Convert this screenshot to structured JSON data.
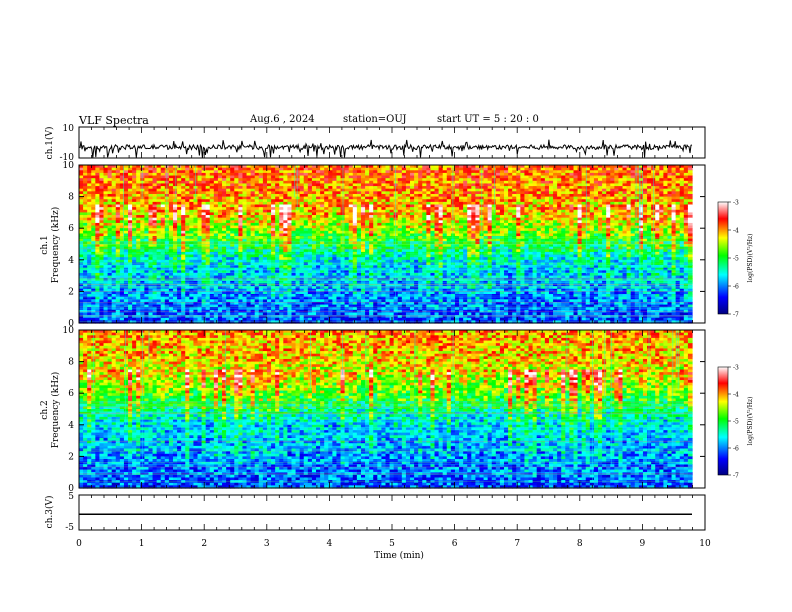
{
  "header": {
    "title": "VLF Spectra",
    "date": "Aug.6  , 2024",
    "station": "station=OUJ",
    "start_ut": "start  UT =   5 : 20 : 0"
  },
  "chart_data": [
    {
      "type": "line",
      "panel": "ch1-waveform",
      "ylabel": "ch.1(V)",
      "ylim": [
        -10,
        10
      ],
      "y_ticks": [
        "10",
        "-10"
      ],
      "xlim": [
        0,
        10
      ],
      "series_color": "#000000",
      "baseline": -3
    },
    {
      "type": "heatmap",
      "panel": "ch1-spectrogram",
      "ylabel": "ch.1\nFrequency (kHz)",
      "ylim": [
        0,
        10
      ],
      "y_ticks": [
        "0",
        "2",
        "4",
        "6",
        "8",
        "10"
      ],
      "xlim": [
        0,
        9.8
      ],
      "colorbar": {
        "label": "log(PSD)(V²/Hz)",
        "range": [
          -7,
          -3
        ],
        "ticks": [
          "-3",
          "-4",
          "-5",
          "-6",
          "-7"
        ],
        "colors": [
          "#000080",
          "#0000ff",
          "#00ffff",
          "#00ff00",
          "#ffff00",
          "#ff0000",
          "#ffffff"
        ]
      },
      "level_profile_by_khz": {
        "0": -6.2,
        "2": -6.0,
        "4": -5.7,
        "5": -5.2,
        "6": -4.7,
        "8": -4.0,
        "10": -3.8
      }
    },
    {
      "type": "heatmap",
      "panel": "ch2-spectrogram",
      "ylabel": "ch.2\nFrequency (kHz)",
      "ylim": [
        0,
        10
      ],
      "y_ticks": [
        "0",
        "2",
        "4",
        "6",
        "8",
        "10"
      ],
      "xlim": [
        0,
        9.8
      ],
      "colorbar": {
        "label": "log(PSD)(V²/Hz)",
        "range": [
          -7,
          -3
        ],
        "ticks": [
          "-3",
          "-4",
          "-5",
          "-6",
          "-7"
        ],
        "colors": [
          "#000080",
          "#0000ff",
          "#00ffff",
          "#00ff00",
          "#ffff00",
          "#ff0000",
          "#ffffff"
        ]
      },
      "level_profile_by_khz": {
        "0": -6.2,
        "2": -6.0,
        "4": -5.8,
        "5": -5.4,
        "6": -4.9,
        "8": -4.2,
        "10": -4.0
      }
    },
    {
      "type": "line",
      "panel": "ch3-waveform",
      "ylabel": "ch.3(V)",
      "ylim": [
        -5,
        5
      ],
      "y_ticks": [
        "5",
        "-5"
      ],
      "xlim": [
        0,
        10
      ],
      "x_ticks": [
        "0",
        "1",
        "2",
        "3",
        "4",
        "5",
        "6",
        "7",
        "8",
        "9",
        "10"
      ],
      "xlabel": "Time (min)",
      "constant_value": -0.5
    }
  ]
}
